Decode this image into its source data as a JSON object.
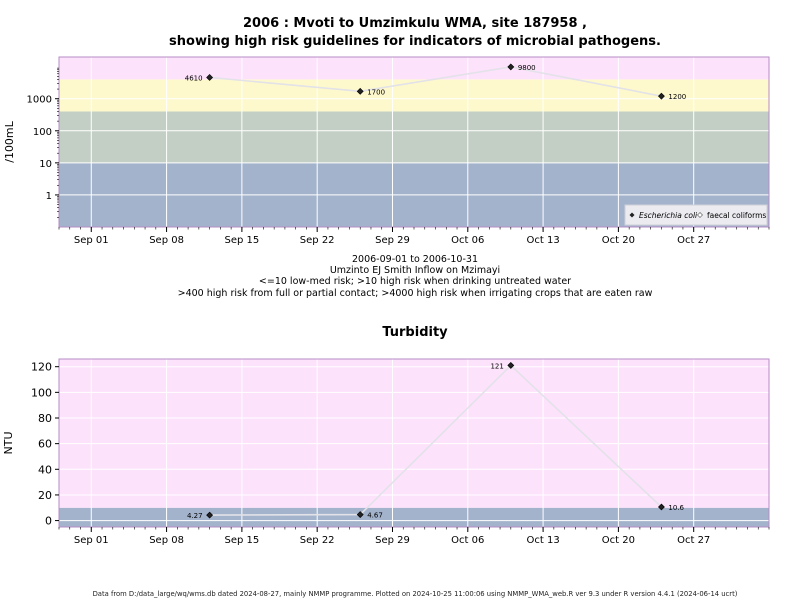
{
  "chart_data": [
    {
      "type": "line",
      "title_line1": "2006 : Mvoti to Umzimkulu WMA, site 187958 ,",
      "title_line2": "showing high risk guidelines for indicators of microbial pathogens.",
      "ylabel": "/100mL",
      "y_scale": "log10",
      "ylim": [
        0.1,
        20000
      ],
      "y_ticks": [
        1,
        10,
        100,
        1000
      ],
      "y_tick_labels": [
        "1",
        "10",
        "100",
        "1000"
      ],
      "x_ticks": [
        "2006-09-01",
        "2006-09-08",
        "2006-09-15",
        "2006-09-22",
        "2006-09-29",
        "2006-10-06",
        "2006-10-13",
        "2006-10-20",
        "2006-10-27"
      ],
      "x_tick_labels": [
        "Sep 01",
        "Sep 08",
        "Sep 15",
        "Sep 22",
        "Sep 29",
        "Oct 06",
        "Oct 13",
        "Oct 20",
        "Oct 27"
      ],
      "xlim": [
        "2006-08-29",
        "2006-11-03"
      ],
      "grid": true,
      "bands": [
        {
          "from": 0.1,
          "to": 10,
          "color": "#a3b3cc"
        },
        {
          "from": 10,
          "to": 400,
          "color": "#c3cfc4"
        },
        {
          "from": 400,
          "to": 4000,
          "color": "#fef9cc"
        },
        {
          "from": 4000,
          "to": 20000,
          "color": "#fde2fc"
        }
      ],
      "series": [
        {
          "name": "Escherichia coli",
          "marker": "diamond-filled",
          "x": [
            "2006-09-12",
            "2006-09-26",
            "2006-10-10",
            "2006-10-24"
          ],
          "values": [
            4610,
            1700,
            9800,
            1200
          ],
          "labels": [
            "4610",
            "1700",
            "9800",
            "1200"
          ],
          "label_side": [
            "left",
            "right",
            "right",
            "right"
          ]
        }
      ],
      "legend": {
        "placement": "bottom-right",
        "entries": [
          "Escherichia coli",
          "faecal coliforms"
        ]
      },
      "caption": [
        "2006-09-01 to 2006-10-31",
        "Umzinto EJ Smith Inflow on Mzimayi",
        "<=10 low-med risk; >10 high risk when drinking untreated water",
        ">400 high risk from full or partial contact; >4000 high risk when irrigating crops that are eaten raw"
      ]
    },
    {
      "type": "line",
      "title": "Turbidity",
      "ylabel": "NTU",
      "ylim": [
        -5,
        126
      ],
      "y_ticks": [
        0,
        20,
        40,
        60,
        80,
        100,
        120
      ],
      "y_tick_labels": [
        "0",
        "20",
        "40",
        "60",
        "80",
        "100",
        "120"
      ],
      "x_ticks": [
        "2006-09-01",
        "2006-09-08",
        "2006-09-15",
        "2006-09-22",
        "2006-09-29",
        "2006-10-06",
        "2006-10-13",
        "2006-10-20",
        "2006-10-27"
      ],
      "x_tick_labels": [
        "Sep 01",
        "Sep 08",
        "Sep 15",
        "Sep 22",
        "Sep 29",
        "Oct 06",
        "Oct 13",
        "Oct 20",
        "Oct 27"
      ],
      "xlim": [
        "2006-08-29",
        "2006-11-03"
      ],
      "grid": true,
      "bands": [
        {
          "from": -5,
          "to": 10,
          "color": "#a3b3cc"
        },
        {
          "from": 10,
          "to": 126,
          "color": "#fde2fc"
        }
      ],
      "series": [
        {
          "marker": "diamond-filled",
          "x": [
            "2006-09-12",
            "2006-09-26",
            "2006-10-10",
            "2006-10-24"
          ],
          "values": [
            4.27,
            4.67,
            121,
            10.6
          ],
          "labels": [
            "4.27",
            "4.67",
            "121",
            "10.6"
          ],
          "label_side": [
            "left",
            "right",
            "left",
            "right"
          ]
        }
      ]
    }
  ],
  "footer": "Data from D:/data_large/wq/wms.db dated 2024-08-27, mainly NMMP programme. Plotted on 2024-10-25 11:00:06 using NMMP_WMA_web.R ver 9.3 under R version 4.4.1 (2024-06-14 ucrt)"
}
